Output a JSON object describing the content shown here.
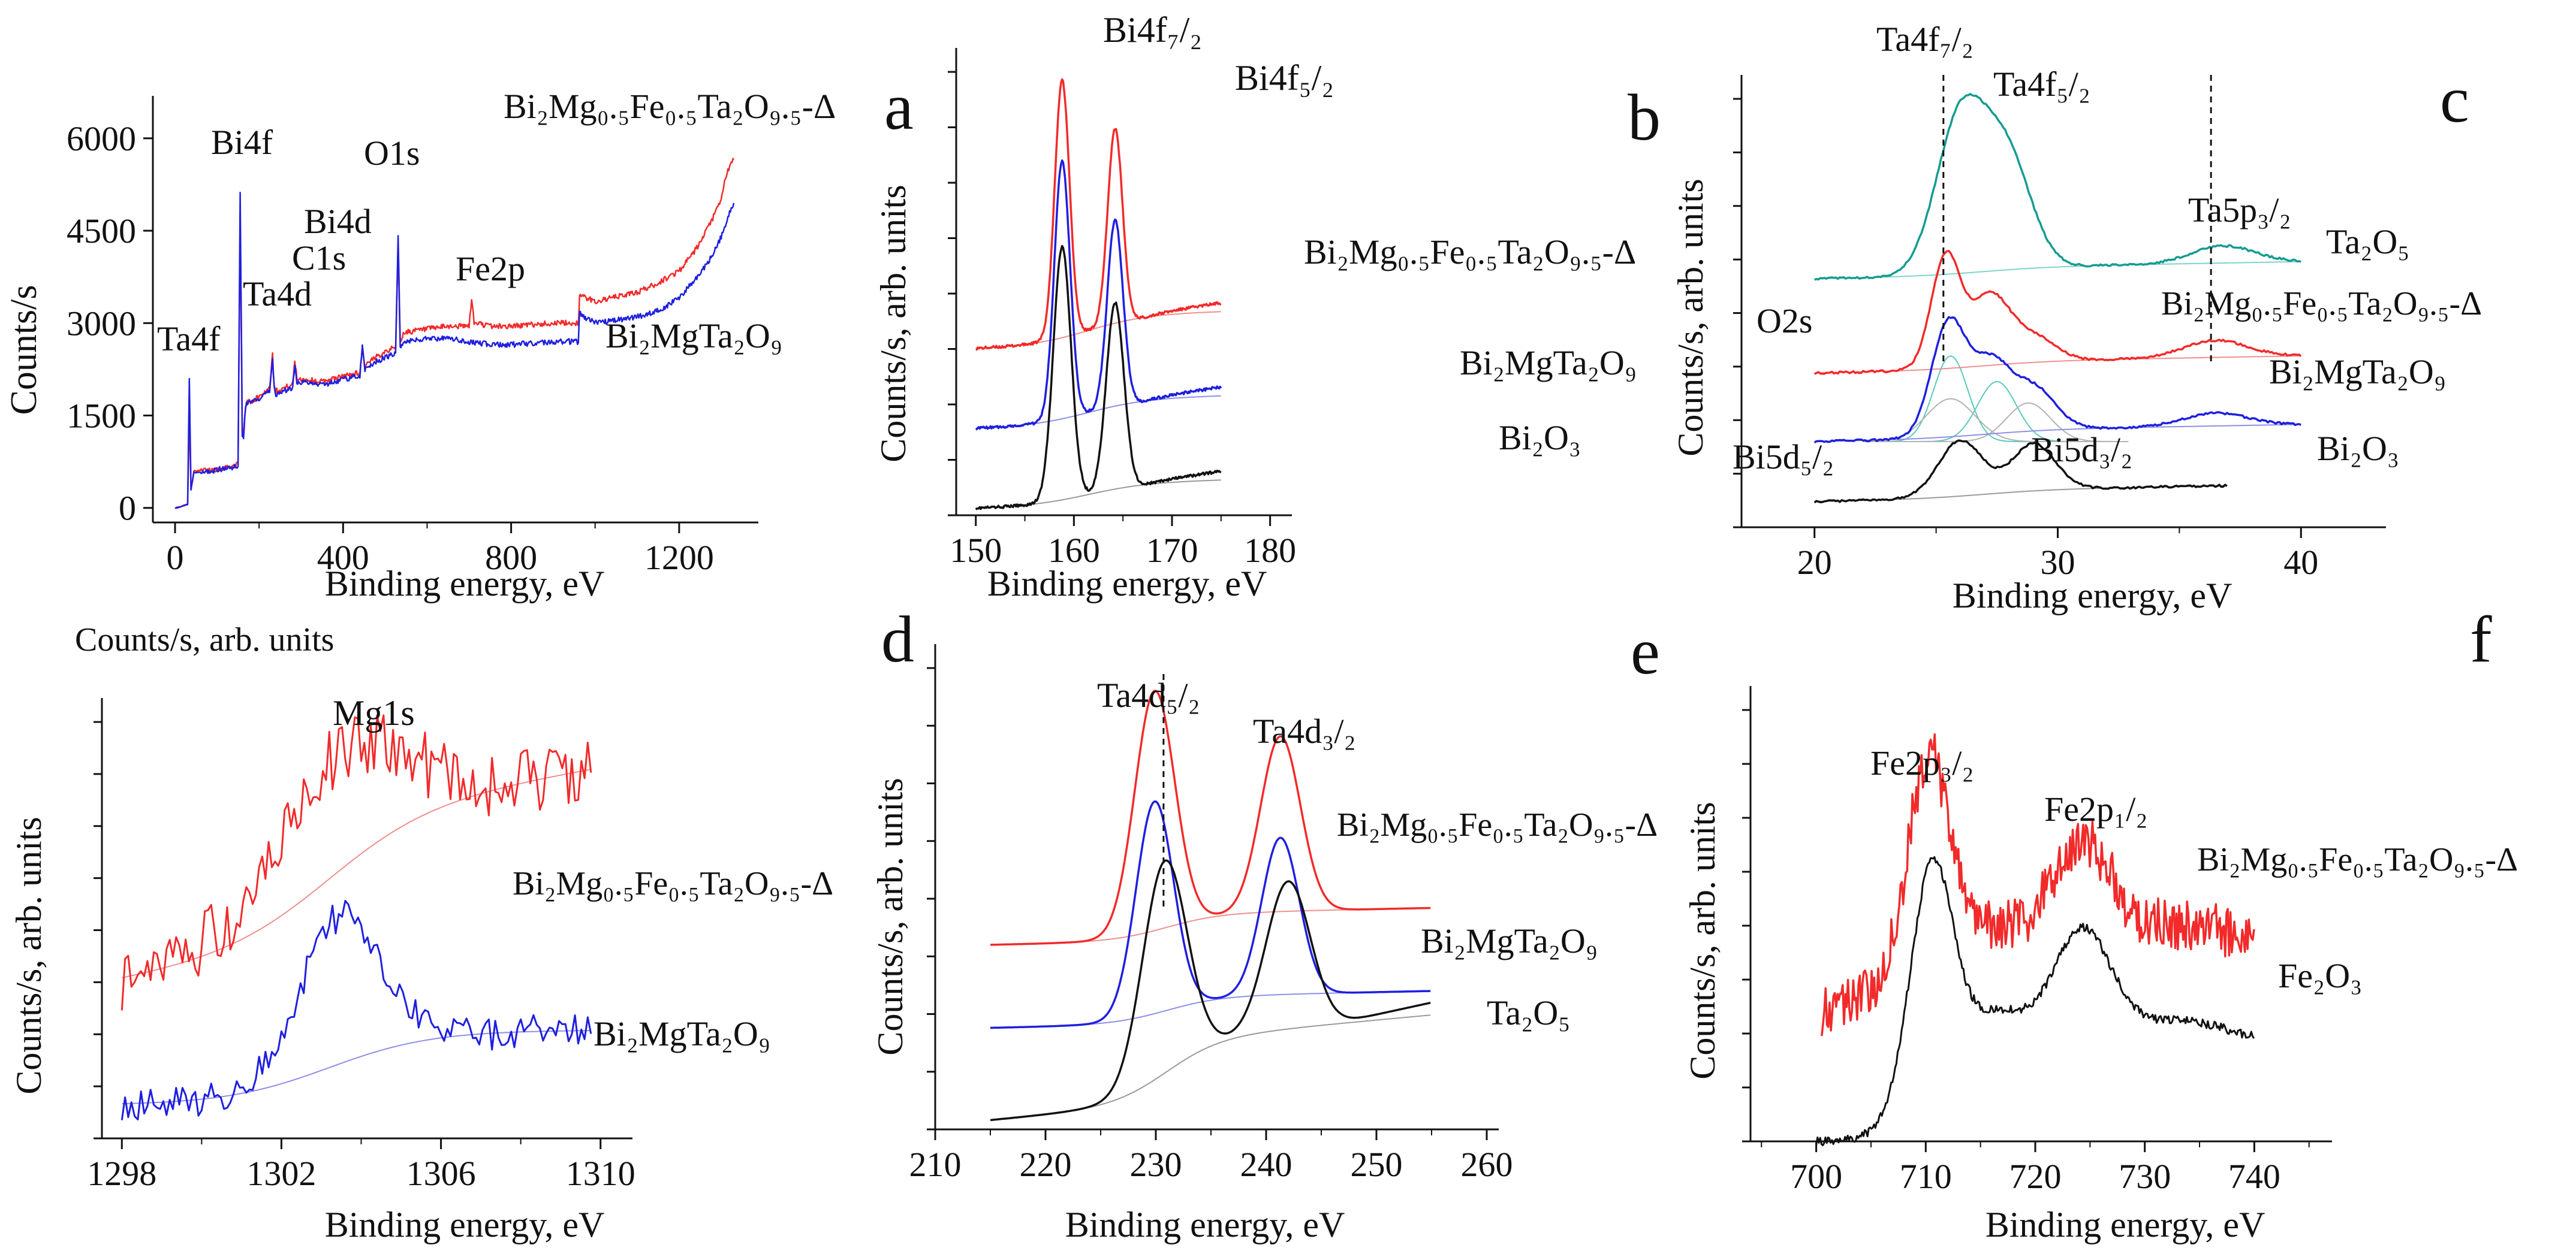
{
  "figure": {
    "panel_letters": [
      "a",
      "b",
      "c",
      "d",
      "e",
      "f"
    ]
  },
  "colors": {
    "red": "#f22a2a",
    "blue": "#1f1fe0",
    "black": "#111111",
    "teal": "#149c90",
    "red_bg": "#f08f8f",
    "blue_bg": "#8e8ee8",
    "black_bg": "#9a9a9a",
    "teal_bg": "#7fd3ca",
    "comp_teal": "#5ac9bd",
    "comp_gray": "#b3b3b3"
  },
  "chart_data": [
    {
      "id": "survey",
      "type": "line",
      "xlabel": "Binding energy, eV",
      "ylabel": "Counts/s",
      "xlim": [
        -20,
        1360
      ],
      "ylim": [
        -100,
        6300
      ],
      "xticks": [
        0,
        400,
        800,
        1200
      ],
      "yticks": [
        0,
        1500,
        3000,
        4500,
        6000
      ],
      "peak_labels": [
        {
          "text": "Ta4f",
          "x": 35
        },
        {
          "text": "Bi4f",
          "x": 162
        },
        {
          "text": "Ta4d",
          "x": 240
        },
        {
          "text": "C1s",
          "x": 285
        },
        {
          "text": "Bi4d",
          "x": 445
        },
        {
          "text": "O1s",
          "x": 530
        },
        {
          "text": "Fe2p",
          "x": 710
        }
      ],
      "series": [
        {
          "name": "Bi₂Mg₀.₅Fe₀.₅Ta₂O₉.₅-Δ",
          "color": "red",
          "x": [
            0,
            15,
            30,
            34,
            38,
            45,
            50,
            90,
            150,
            155,
            160,
            163,
            166,
            170,
            200,
            225,
            232,
            236,
            240,
            280,
            285,
            290,
            350,
            440,
            446,
            452,
            460,
            500,
            525,
            531,
            536,
            545,
            600,
            650,
            700,
            706,
            712,
            720,
            750,
            800,
            900,
            960,
            963,
            1000,
            1100,
            1150,
            1200,
            1230,
            1250,
            1280,
            1300,
            1310,
            1320,
            1330
          ],
          "y": [
            0,
            20,
            60,
            1600,
            300,
            600,
            600,
            620,
            700,
            4800,
            1200,
            1200,
            1500,
            1700,
            1800,
            1950,
            2500,
            2000,
            1900,
            2000,
            2400,
            2100,
            2050,
            2200,
            2600,
            2300,
            2350,
            2550,
            2600,
            4300,
            2700,
            2850,
            2900,
            2950,
            2950,
            3400,
            3000,
            3000,
            2950,
            2950,
            3000,
            3000,
            3450,
            3350,
            3500,
            3650,
            3850,
            4100,
            4300,
            4700,
            5000,
            5350,
            5550,
            5650
          ]
        },
        {
          "name": "Bi₂MgTa₂O₉",
          "color": "blue",
          "x": [
            0,
            15,
            30,
            34,
            38,
            45,
            50,
            90,
            150,
            155,
            160,
            163,
            166,
            170,
            200,
            225,
            232,
            236,
            240,
            280,
            285,
            290,
            350,
            440,
            446,
            452,
            460,
            500,
            525,
            531,
            536,
            545,
            600,
            650,
            700,
            750,
            800,
            900,
            960,
            963,
            1000,
            1100,
            1150,
            1200,
            1230,
            1250,
            1280,
            1300,
            1310,
            1320,
            1330
          ],
          "y": [
            0,
            20,
            60,
            2100,
            300,
            580,
            570,
            600,
            680,
            5100,
            1200,
            1150,
            1450,
            1700,
            1750,
            1900,
            2450,
            1950,
            1850,
            1950,
            2350,
            2050,
            2000,
            2150,
            2600,
            2250,
            2300,
            2450,
            2500,
            4400,
            2600,
            2700,
            2750,
            2750,
            2700,
            2650,
            2650,
            2700,
            2700,
            3150,
            3000,
            3100,
            3200,
            3400,
            3650,
            3800,
            4100,
            4400,
            4600,
            4800,
            4950
          ]
        }
      ],
      "series_labels": [
        {
          "text": "Bi₂Mg₀.₅Fe₀.₅Ta₂O₉.₅-Δ"
        },
        {
          "text": "Bi₂MgTa₂O₉"
        }
      ]
    },
    {
      "id": "a",
      "type": "line",
      "letter": "a",
      "xlabel": "Binding energy, eV",
      "ylabel": "Counts/s, arb. units",
      "xlim": [
        148,
        181
      ],
      "ylim": [
        0,
        100
      ],
      "xticks": [
        150,
        160,
        170,
        180
      ],
      "peak_labels": [
        {
          "text": "Bi4f₇/₂"
        },
        {
          "text": "Bi4f₅/₂"
        }
      ],
      "series": [
        {
          "name": "Bi₂Mg₀.₅Fe₀.₅Ta₂O₉.₅-Δ",
          "color": "red",
          "offset": 36,
          "bg_color": "red_bg",
          "bg_start": 0,
          "bg_step": 7,
          "tail": 4,
          "peaks": [
            [
              158.8,
              58,
              0.75
            ],
            [
              164.2,
              44,
              0.75
            ]
          ]
        },
        {
          "name": "Bi₂MgTa₂O₉",
          "color": "blue",
          "offset": 18,
          "bg_color": "blue_bg",
          "bg_start": 0,
          "bg_step": 6,
          "tail": 4,
          "peaks": [
            [
              158.8,
              58,
              0.8
            ],
            [
              164.2,
              42,
              0.8
            ]
          ]
        },
        {
          "name": "Bi₂O₃",
          "color": "black",
          "offset": 0,
          "bg_color": "black_bg",
          "bg_start": 0,
          "bg_step": 5,
          "tail": 6,
          "peaks": [
            [
              158.8,
              57,
              0.9
            ],
            [
              164.2,
              42,
              0.9
            ]
          ]
        }
      ]
    },
    {
      "id": "b",
      "type": "line",
      "letter": "b",
      "xlabel": "Binding energy, eV",
      "ylabel": "Counts/s, arb. units",
      "xlim": [
        17,
        43
      ],
      "ylim": [
        0,
        100
      ],
      "xticks": [
        20,
        30,
        40
      ],
      "peak_labels": [
        {
          "text": "Ta4f₇/₂"
        },
        {
          "text": "Ta4f₅/₂"
        },
        {
          "text": "Ta5p₃/₂"
        },
        {
          "text": "O2s"
        },
        {
          "text": "Bi5d₅/₂"
        },
        {
          "text": "Bi5d₃/₂"
        }
      ],
      "dashed_lines_x": [
        25.3,
        36.3
      ],
      "series": [
        {
          "name": "Ta₂O₅",
          "color": "teal",
          "bg_color": "teal_bg",
          "offset": 58,
          "peaks": [
            [
              26.0,
              36,
              1.0
            ],
            [
              27.9,
              26,
              1.0
            ],
            [
              36.8,
              4,
              1.3
            ]
          ]
        },
        {
          "name": "Bi₂Mg₀.₅Fe₀.₅Ta₂O₉.₅-Δ",
          "color": "red",
          "bg_color": "red_bg",
          "offset": 36,
          "peaks": [
            [
              25.4,
              26,
              0.6
            ],
            [
              27.2,
              16,
              0.8
            ],
            [
              29.0,
              6,
              0.9
            ],
            [
              36.5,
              4,
              1.3
            ]
          ]
        },
        {
          "name": "Bi₂MgTa₂O₉",
          "color": "blue",
          "bg_color": "blue_bg",
          "offset": 20,
          "peaks": [
            [
              25.5,
              26,
              0.7
            ],
            [
              27.2,
              16,
              0.8
            ],
            [
              29.0,
              10,
              0.9
            ],
            [
              36.5,
              3,
              1.3
            ]
          ]
        },
        {
          "name": "Bi₂O₃",
          "color": "black",
          "bg_color": "black_bg",
          "offset": 6,
          "peaks": [
            [
              26.0,
              13,
              0.9
            ],
            [
              29.0,
              11,
              0.9
            ]
          ]
        }
      ],
      "components": {
        "offset": 20,
        "items": [
          [
            25.6,
            20,
            0.7
          ],
          [
            27.5,
            14,
            0.8
          ],
          [
            25.6,
            10,
            1.0
          ],
          [
            28.8,
            9,
            0.9
          ]
        ]
      }
    },
    {
      "id": "c",
      "type": "line",
      "letter": "c",
      "ylabel": "Counts/s, arb. units",
      "xlabel": "Binding energy, eV",
      "xlim": [
        1297.5,
        1310.5
      ],
      "ylim": [
        0,
        100
      ],
      "xticks": [
        1298,
        1302,
        1306,
        1310
      ],
      "peak_labels": [
        {
          "text": "Mg1s"
        }
      ],
      "series": [
        {
          "name": "Bi₂Mg₀.₅Fe₀.₅Ta₂O₉.₅-Δ",
          "color": "red",
          "bg_color": "red_bg",
          "offset": 38,
          "peak": [
            1303.5,
            28,
            1.6
          ],
          "bg_rise": 32,
          "noise": 8
        },
        {
          "name": "Bi₂MgTa₂O₉",
          "color": "blue",
          "bg_color": "blue_bg",
          "offset": 8,
          "peak": [
            1303.5,
            36,
            1.0
          ],
          "bg_rise": 18,
          "noise": 4
        }
      ]
    },
    {
      "id": "d",
      "type": "line",
      "letter": "d",
      "xlabel": "Binding energy, eV",
      "ylabel": "Counts/s, arb. units",
      "xlim": [
        210,
        260
      ],
      "ylim": [
        0,
        100
      ],
      "xticks": [
        210,
        220,
        230,
        240,
        250,
        260
      ],
      "peak_labels": [
        {
          "text": "Ta4d₅/₂"
        },
        {
          "text": "Ta4d₃/₂"
        }
      ],
      "dashed_lines_x": [
        230.7
      ],
      "series": [
        {
          "name": "Bi₂Mg₀.₅Fe₀.₅Ta₂O₉.₅-Δ",
          "color": "red",
          "bg_color": "red_bg",
          "offset": 40,
          "peaks": [
            [
              229.9,
              52,
              1.8
            ],
            [
              241.3,
              38,
              1.8
            ]
          ]
        },
        {
          "name": "Bi₂MgTa₂O₉",
          "color": "blue",
          "bg_color": "blue_bg",
          "offset": 22,
          "peaks": [
            [
              229.9,
              46,
              1.7
            ],
            [
              241.3,
              34,
              1.7
            ]
          ]
        },
        {
          "name": "Ta₂O₅",
          "color": "black",
          "bg_color": "black_bg",
          "offset": 2,
          "peaks": [
            [
              230.8,
              46,
              2.0
            ],
            [
              242.0,
              32,
              2.0
            ]
          ]
        }
      ]
    },
    {
      "id": "e",
      "type": "line",
      "letter": "e",
      "xlabel": "Binding energy, eV",
      "ylabel": "Counts/s, arb. units",
      "xlim": [
        694,
        746
      ],
      "ylim": [
        0,
        100
      ],
      "xticks": [
        700,
        710,
        720,
        730,
        740
      ],
      "peak_labels": [
        {
          "text": "Fe2p₃/₂"
        },
        {
          "text": "Fe2p₁/₂"
        }
      ],
      "series": [
        {
          "name": "Bi₂Mg₀.₅Fe₀.₅Ta₂O₉.₅-Δ",
          "color": "red",
          "offset": 30,
          "noise": 6,
          "peaks": [
            [
              710.3,
              46,
              1.8
            ],
            [
              724.2,
              24,
              2.6
            ],
            [
              716.5,
              6,
              3
            ],
            [
              733,
              6,
              6
            ]
          ]
        },
        {
          "name": "Fe₂O₃",
          "color": "black",
          "offset": 0,
          "noise": 1,
          "peaks": [
            [
              710.6,
              44,
              1.8
            ],
            [
              724.3,
              26,
              2.6
            ],
            [
              716.5,
              8,
              3
            ],
            [
              733,
              6,
              5
            ]
          ]
        }
      ]
    }
  ],
  "top_left_caption": "Counts/s, arb. units"
}
